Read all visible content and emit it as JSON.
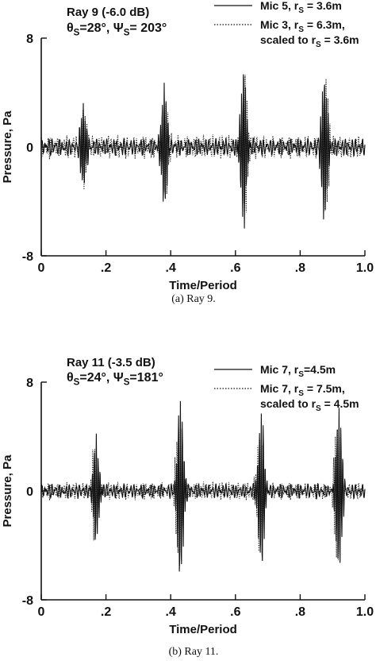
{
  "chart_data": [
    {
      "type": "line",
      "caption": "(a) Ray 9.",
      "title_line1": "Ray 9 (-6.0 dB)",
      "theta_label": "θ",
      "theta_sub": "S",
      "theta_value": "=28°",
      "psi_label": "Ψ",
      "psi_sub": "S",
      "psi_value": "= 203°",
      "xlabel": "Time/Period",
      "ylabel": "Pressure, Pa",
      "xlim": [
        0.0,
        1.0
      ],
      "ylim": [
        -8,
        8
      ],
      "x_ticks": [
        {
          "value": 0.0,
          "label": "0"
        },
        {
          "value": 0.2,
          "label": ".2"
        },
        {
          "value": 0.4,
          "label": ".4"
        },
        {
          "value": 0.6,
          "label": ".6"
        },
        {
          "value": 0.8,
          "label": ".8"
        },
        {
          "value": 1.0,
          "label": "1.0"
        }
      ],
      "y_ticks": [
        {
          "value": 8,
          "label": "8"
        },
        {
          "value": 0,
          "label": "0"
        },
        {
          "value": -8,
          "label": "-8"
        }
      ],
      "legend_position": "top-right",
      "legend": [
        {
          "style": "solid",
          "text": "Mic 5, r",
          "sub": "S",
          "tail": " = 3.6m",
          "line2": ""
        },
        {
          "style": "dotted",
          "text": "Mic 3, r",
          "sub": "S",
          "tail": " = 6.3m,",
          "line2": "scaled to r",
          "line2_sub": "S",
          "line2_tail": " = 3.6m"
        }
      ],
      "series": [
        {
          "style": "solid",
          "pulses": [
            {
              "t": 0.13,
              "amp": 3.0
            },
            {
              "t": 0.38,
              "amp": 4.5
            },
            {
              "t": 0.625,
              "amp": 5.8
            },
            {
              "t": 0.875,
              "amp": 5.4
            }
          ],
          "noise_amp": 0.6
        },
        {
          "style": "dotted",
          "pulses": [
            {
              "t": 0.135,
              "amp": 2.6
            },
            {
              "t": 0.385,
              "amp": 3.6
            },
            {
              "t": 0.63,
              "amp": 4.6
            },
            {
              "t": 0.88,
              "amp": 4.8
            }
          ],
          "noise_amp": 0.8
        }
      ]
    },
    {
      "type": "line",
      "caption": "(b) Ray 11.",
      "title_line1": "Ray 11 (-3.5 dB)",
      "theta_label": "θ",
      "theta_sub": "S",
      "theta_value": "=24°",
      "psi_label": "Ψ",
      "psi_sub": "S",
      "psi_value": "=181°",
      "xlabel": "Time/Period",
      "ylabel": "Pressure, Pa",
      "xlim": [
        0.0,
        1.0
      ],
      "ylim": [
        -8,
        8
      ],
      "x_ticks": [
        {
          "value": 0.0,
          "label": "0"
        },
        {
          "value": 0.2,
          "label": ".2"
        },
        {
          "value": 0.4,
          "label": ".4"
        },
        {
          "value": 0.6,
          "label": ".6"
        },
        {
          "value": 0.8,
          "label": ".8"
        },
        {
          "value": 1.0,
          "label": "1.0"
        }
      ],
      "y_ticks": [
        {
          "value": 8,
          "label": "8"
        },
        {
          "value": 0,
          "label": "0"
        },
        {
          "value": -8,
          "label": "-8"
        }
      ],
      "legend_position": "top-right",
      "legend": [
        {
          "style": "solid",
          "text": "Mic 7, r",
          "sub": "S",
          "tail": "=4.5m",
          "line2": ""
        },
        {
          "style": "dotted",
          "text": "Mic 7, r",
          "sub": "S",
          "tail": " = 7.5m,",
          "line2": "scaled to r",
          "line2_sub": "S",
          "line2_tail": " = 4.5m"
        }
      ],
      "series": [
        {
          "style": "solid",
          "pulses": [
            {
              "t": 0.17,
              "amp": 3.8
            },
            {
              "t": 0.43,
              "amp": 6.8
            },
            {
              "t": 0.68,
              "amp": 5.8
            },
            {
              "t": 0.92,
              "amp": 6.2
            }
          ],
          "noise_amp": 0.5
        },
        {
          "style": "dotted",
          "pulses": [
            {
              "t": 0.165,
              "amp": 3.4
            },
            {
              "t": 0.425,
              "amp": 5.6
            },
            {
              "t": 0.675,
              "amp": 4.6
            },
            {
              "t": 0.915,
              "amp": 5.2
            }
          ],
          "noise_amp": 0.6
        }
      ]
    }
  ]
}
